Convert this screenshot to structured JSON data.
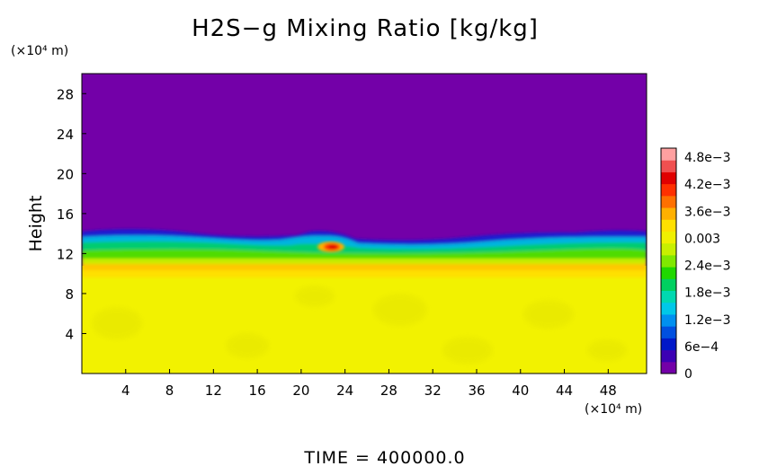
{
  "chart_data": {
    "type": "heatmap",
    "title": "H2S−g Mixing Ratio [kg/kg]",
    "ylabel": "Height",
    "y_unit_label": "(×10⁴ m)",
    "x_unit_label": "(×10⁴ m)",
    "xlim": [
      0,
      51.5
    ],
    "ylim": [
      0,
      30
    ],
    "x_ticks": [
      4,
      8,
      12,
      16,
      20,
      24,
      28,
      32,
      36,
      40,
      44,
      48
    ],
    "y_ticks": [
      4,
      8,
      12,
      16,
      20,
      24,
      28
    ],
    "colorbar": {
      "range": [
        0,
        0.005
      ],
      "ticks": [
        {
          "value": 0,
          "label": "0"
        },
        {
          "value": 0.0006,
          "label": "6e−4"
        },
        {
          "value": 0.0012,
          "label": "1.2e−3"
        },
        {
          "value": 0.0018,
          "label": "1.8e−3"
        },
        {
          "value": 0.0024,
          "label": "2.4e−3"
        },
        {
          "value": 0.003,
          "label": "0.003"
        },
        {
          "value": 0.0036,
          "label": "3.6e−3"
        },
        {
          "value": 0.0042,
          "label": "4.2e−3"
        },
        {
          "value": 0.0048,
          "label": "4.8e−3"
        }
      ],
      "colors": [
        "#7300a8",
        "#3c00b4",
        "#0018c8",
        "#0050e0",
        "#0090f0",
        "#00c8e8",
        "#00d8b0",
        "#00d060",
        "#20d800",
        "#80e800",
        "#c8f000",
        "#f0f000",
        "#ffe000",
        "#ffb000",
        "#ff7000",
        "#ff3000",
        "#e00000",
        "#f05050",
        "#ffa0a0"
      ]
    },
    "field_summary": [
      {
        "height_range": [
          14,
          30
        ],
        "value": 0,
        "description": "upper region"
      },
      {
        "height_range": [
          13,
          14
        ],
        "value": 0.0012,
        "description": "transition band"
      },
      {
        "height_range": [
          11,
          13
        ],
        "value": 0.0027,
        "description": "green band"
      },
      {
        "height_range": [
          0,
          10
        ],
        "value": 0.0036,
        "description": "lower region"
      },
      {
        "x": 22.5,
        "height": 12.7,
        "value": 0.0045,
        "description": "local maximum"
      }
    ]
  },
  "footer": {
    "time_label": "TIME  =  400000.0"
  }
}
